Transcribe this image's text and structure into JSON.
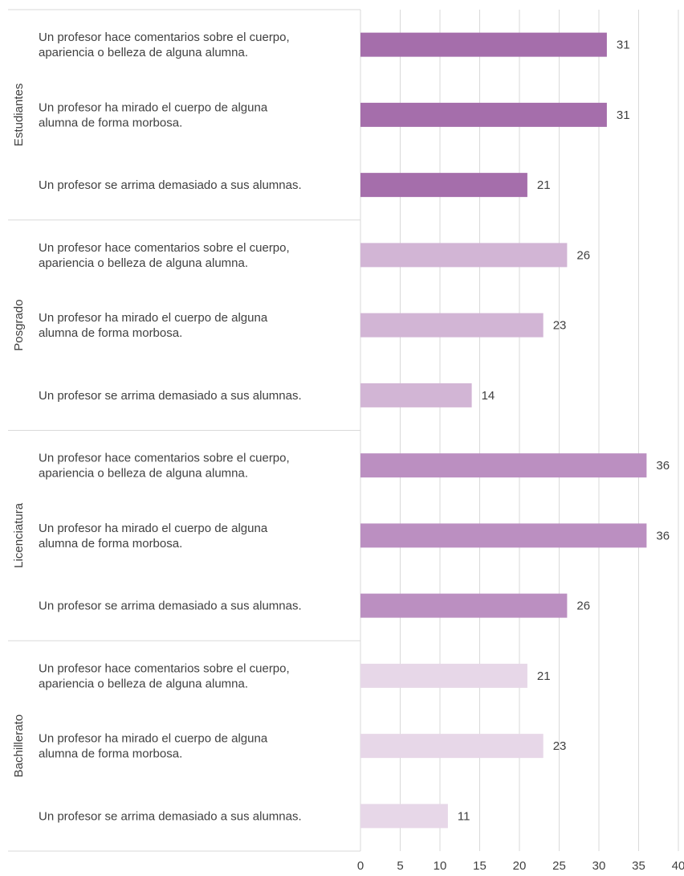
{
  "chart_data": {
    "type": "bar",
    "orientation": "horizontal",
    "title": "",
    "xlabel": "",
    "ylabel": "",
    "xlim": [
      0,
      40
    ],
    "xticks": [
      0,
      5,
      10,
      15,
      20,
      25,
      30,
      35,
      40
    ],
    "grid": "vertical",
    "legend": "none",
    "groups": [
      {
        "name": "Estudiantes",
        "color": "#a56eab",
        "items": [
          {
            "label": [
              "Un profesor hace comentarios sobre el cuerpo,",
              "apariencia o belleza de alguna alumna."
            ],
            "value": 31
          },
          {
            "label": [
              "Un profesor ha mirado el cuerpo de alguna",
              "alumna de forma morbosa."
            ],
            "value": 31
          },
          {
            "label": [
              "Un profesor se arrima demasiado a sus alumnas."
            ],
            "value": 21
          }
        ]
      },
      {
        "name": "Posgrado",
        "color": "#d2b5d5",
        "items": [
          {
            "label": [
              "Un profesor hace comentarios sobre el cuerpo,",
              "apariencia o belleza de alguna alumna."
            ],
            "value": 26
          },
          {
            "label": [
              "Un profesor ha mirado el cuerpo de alguna",
              "alumna de forma morbosa."
            ],
            "value": 23
          },
          {
            "label": [
              "Un profesor se arrima demasiado a sus alumnas."
            ],
            "value": 14
          }
        ]
      },
      {
        "name": "Licenciatura",
        "color": "#bb8fc1",
        "items": [
          {
            "label": [
              "Un profesor hace comentarios sobre el cuerpo,",
              "apariencia o belleza de alguna alumna."
            ],
            "value": 36
          },
          {
            "label": [
              "Un profesor ha mirado el cuerpo de alguna",
              "alumna de forma morbosa."
            ],
            "value": 36
          },
          {
            "label": [
              "Un profesor se arrima demasiado a sus alumnas."
            ],
            "value": 26
          }
        ]
      },
      {
        "name": "Bachillerato",
        "color": "#e7d7e8",
        "items": [
          {
            "label": [
              "Un profesor hace comentarios sobre el cuerpo,",
              "apariencia o belleza de alguna alumna."
            ],
            "value": 21
          },
          {
            "label": [
              "Un profesor ha mirado el cuerpo de alguna",
              "alumna de forma morbosa."
            ],
            "value": 23
          },
          {
            "label": [
              "Un profesor se arrima demasiado a sus alumnas."
            ],
            "value": 11
          }
        ]
      }
    ]
  }
}
